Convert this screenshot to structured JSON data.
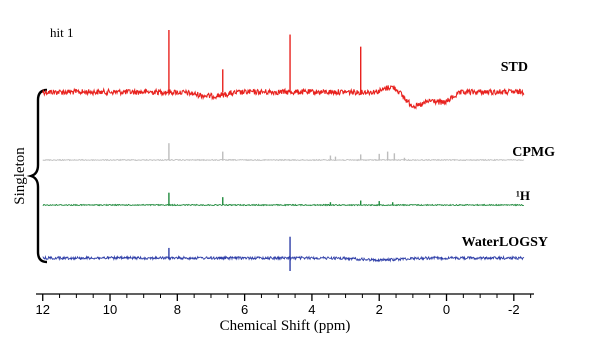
{
  "chart_data": {
    "type": "line",
    "title": "hit 1",
    "xlabel": "Chemical Shift (ppm)",
    "ylabel": "",
    "xlim": [
      12.2,
      -2.6
    ],
    "x_ticks": [
      12,
      10,
      8,
      6,
      4,
      2,
      0,
      -2
    ],
    "x_tick_labels": [
      "12",
      "10",
      "8",
      "6",
      "4",
      "2",
      "0",
      "-2"
    ],
    "grid": false,
    "group_label": "Singleton",
    "series": [
      {
        "name": "STD",
        "color": "#e8231f",
        "noise": 0.9,
        "peaks": [
          {
            "ppm": 8.25,
            "height": 8.2
          },
          {
            "ppm": 6.65,
            "height": 3.0
          },
          {
            "ppm": 4.65,
            "height": 7.6
          },
          {
            "ppm": 2.55,
            "height": 6.0
          }
        ]
      },
      {
        "name": "CPMG",
        "color": "#bdbdbd",
        "noise": 0.15,
        "peaks": [
          {
            "ppm": 8.25,
            "height": 3.0
          },
          {
            "ppm": 6.65,
            "height": 1.5
          },
          {
            "ppm": 3.45,
            "height": 0.8
          },
          {
            "ppm": 3.3,
            "height": 0.6
          },
          {
            "ppm": 2.55,
            "height": 1.0
          },
          {
            "ppm": 2.0,
            "height": 1.1
          },
          {
            "ppm": 1.75,
            "height": 1.5
          },
          {
            "ppm": 1.55,
            "height": 1.2
          },
          {
            "ppm": 1.25,
            "height": 0.4
          }
        ]
      },
      {
        "name": "¹H",
        "color": "#1f8a3c",
        "noise": 0.18,
        "peaks": [
          {
            "ppm": 8.25,
            "height": 2.2
          },
          {
            "ppm": 6.65,
            "height": 1.4
          },
          {
            "ppm": 3.45,
            "height": 0.5
          },
          {
            "ppm": 2.55,
            "height": 0.8
          },
          {
            "ppm": 2.0,
            "height": 0.7
          },
          {
            "ppm": 1.6,
            "height": 0.5
          }
        ]
      },
      {
        "name": "WaterLOGSY",
        "color": "#2f3fa8",
        "noise": 0.45,
        "peaks": [
          {
            "ppm": 8.25,
            "height": 1.8
          },
          {
            "ppm": 4.65,
            "height": 3.8
          }
        ]
      }
    ]
  }
}
